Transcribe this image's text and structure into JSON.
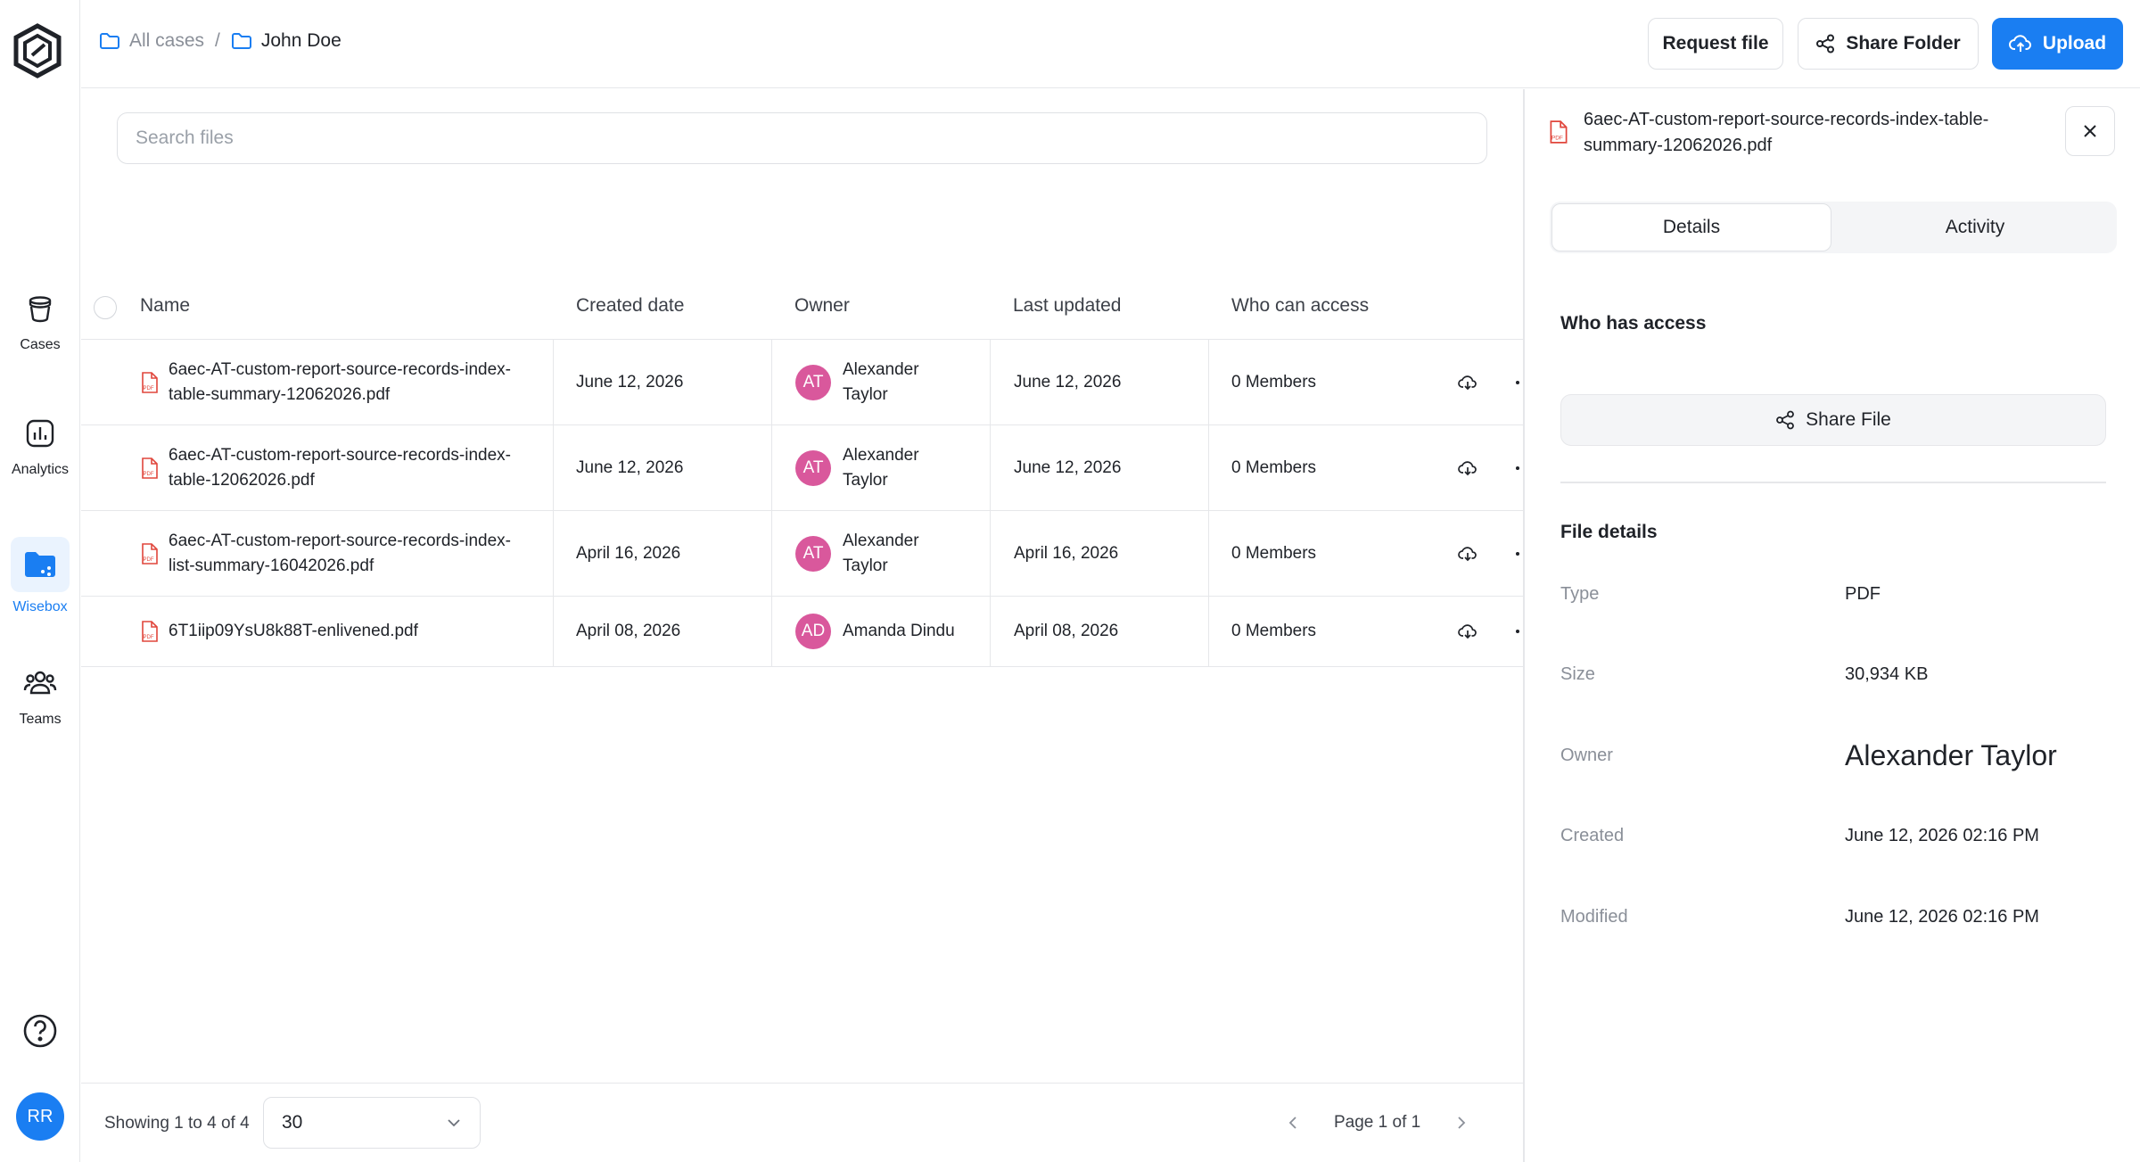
{
  "sidebar": {
    "items": [
      {
        "label": "Cases",
        "icon": "cases-icon"
      },
      {
        "label": "Analytics",
        "icon": "analytics-icon"
      },
      {
        "label": "Wisebox",
        "icon": "folder-share-icon"
      },
      {
        "label": "Teams",
        "icon": "teams-icon"
      }
    ],
    "user_initials": "RR"
  },
  "breadcrumb": {
    "root": "All cases",
    "separator": "/",
    "current": "John Doe"
  },
  "toolbar": {
    "request_label": "Request file",
    "share_folder_label": "Share Folder",
    "upload_label": "Upload"
  },
  "search": {
    "placeholder": "Search files"
  },
  "table": {
    "columns": [
      "Name",
      "Created date",
      "Owner",
      "Last updated",
      "Who can access"
    ],
    "rows": [
      {
        "name": "6aec-AT-custom-report-source-records-index-table-summary-12062026.pdf",
        "created": "June 12, 2026",
        "owner_initials": "AT",
        "owner": "Alexander Taylor",
        "updated": "June 12, 2026",
        "access": "0 Members"
      },
      {
        "name": "6aec-AT-custom-report-source-records-index-table-12062026.pdf",
        "created": "June 12, 2026",
        "owner_initials": "AT",
        "owner": "Alexander Taylor",
        "updated": "June 12, 2026",
        "access": "0 Members"
      },
      {
        "name": "6aec-AT-custom-report-source-records-index-list-summary-16042026.pdf",
        "created": "April 16, 2026",
        "owner_initials": "AT",
        "owner": "Alexander Taylor",
        "updated": "April 16, 2026",
        "access": "0 Members"
      },
      {
        "name": "6T1iip09YsU8k88T-enlivened.pdf",
        "created": "April 08, 2026",
        "owner_initials": "AD",
        "owner": "Amanda Dindu",
        "updated": "April 08, 2026",
        "access": "0 Members"
      }
    ]
  },
  "footer": {
    "showing": "Showing 1 to 4 of 4",
    "per_page": "30",
    "page_label": "Page 1 of 1"
  },
  "panel": {
    "file_name": "6aec-AT-custom-report-source-records-index-table-summary-12062026.pdf",
    "tabs": [
      "Details",
      "Activity"
    ],
    "access_title": "Who has access",
    "share_file_label": "Share File",
    "details_title": "File details",
    "details": [
      {
        "label": "Type",
        "value": "PDF"
      },
      {
        "label": "Size",
        "value": "30,934 KB"
      },
      {
        "label": "Owner",
        "value": "Alexander Taylor"
      },
      {
        "label": "Created",
        "value": "June 12, 2026 02:16 PM"
      },
      {
        "label": "Modified",
        "value": "June 12, 2026 02:16 PM"
      }
    ]
  },
  "colors": {
    "accent": "#1a7ef2",
    "avatar": "#d9589c",
    "pdf_icon": "#e0463c"
  }
}
